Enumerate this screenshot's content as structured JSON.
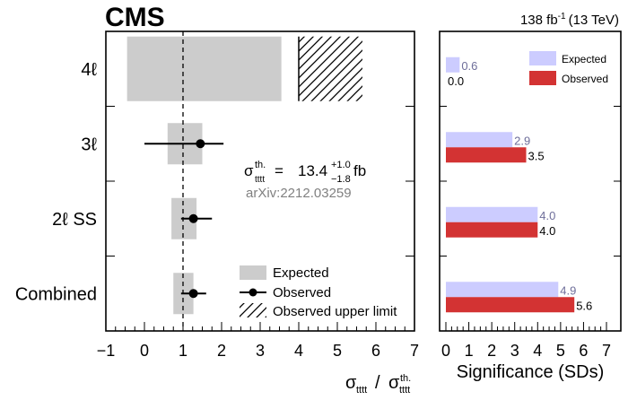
{
  "header": {
    "experiment": "CMS",
    "lumi": "138 fb",
    "lumi_sup": "-1",
    "energy": "(13 TeV)"
  },
  "annotation": {
    "sigma": "σ",
    "sup": "th.",
    "sub": "tttt",
    "equals": "=",
    "value": "13.4",
    "err_up": "+1.0",
    "err_down": "−1.8",
    "unit": "fb",
    "arxiv": "arXiv:2212.03259"
  },
  "colors": {
    "expected_box": "#cccccc",
    "observed_marker": "#000000",
    "sig_expected": "#ccccff",
    "sig_observed": "#d33333",
    "sig_expected_text": "#6e6e9a"
  },
  "chart_data": [
    {
      "type": "scatter",
      "title": "",
      "xlabel": "σ_tttt / σ_tttt^th.",
      "xlabel_parts": {
        "sigma": "σ",
        "sub": "tttt",
        "slash": "/",
        "sup": "th."
      },
      "ylabel": "",
      "xlim": [
        -1,
        7
      ],
      "xticks": [
        "−1",
        "0",
        "1",
        "2",
        "3",
        "4",
        "5",
        "6",
        "7"
      ],
      "categories": [
        "4ℓ",
        "3ℓ",
        "2ℓ SS",
        "Combined"
      ],
      "reference_line": 1,
      "series": [
        {
          "name": "Expected",
          "style": "box",
          "ranges": [
            [
              -0.45,
              3.55
            ],
            [
              0.6,
              1.5
            ],
            [
              0.7,
              1.35
            ],
            [
              0.75,
              1.27
            ]
          ]
        },
        {
          "name": "Observed",
          "style": "point-errorbar",
          "values": [
            null,
            1.45,
            1.27,
            1.27
          ],
          "errors": [
            null,
            [
              0.0,
              2.05
            ],
            [
              0.95,
              1.75
            ],
            [
              0.95,
              1.6
            ]
          ]
        },
        {
          "name": "Observed upper limit",
          "style": "hatched",
          "ranges": [
            [
              4.0,
              5.65
            ],
            null,
            null,
            null
          ]
        }
      ],
      "legend": [
        "Expected",
        "Observed",
        "Observed upper limit"
      ],
      "legend_position": "bottom-right",
      "grid": false
    },
    {
      "type": "bar",
      "orientation": "horizontal",
      "title": "",
      "xlabel": "Significance (SDs)",
      "ylabel": "",
      "xlim": [
        0,
        7
      ],
      "xticks": [
        "0",
        "1",
        "2",
        "3",
        "4",
        "5",
        "6",
        "7"
      ],
      "categories": [
        "4ℓ",
        "3ℓ",
        "2ℓ SS",
        "Combined"
      ],
      "series": [
        {
          "name": "Expected",
          "values": [
            0.6,
            2.9,
            4.0,
            4.9
          ],
          "labels": [
            "0.6",
            "2.9",
            "4.0",
            "4.9"
          ]
        },
        {
          "name": "Observed",
          "values": [
            0.0,
            3.5,
            4.0,
            5.6
          ],
          "labels": [
            "0.0",
            "3.5",
            "4.0",
            "5.6"
          ]
        }
      ],
      "legend": [
        "Expected",
        "Observed"
      ],
      "legend_position": "top-right",
      "grid": false
    }
  ]
}
